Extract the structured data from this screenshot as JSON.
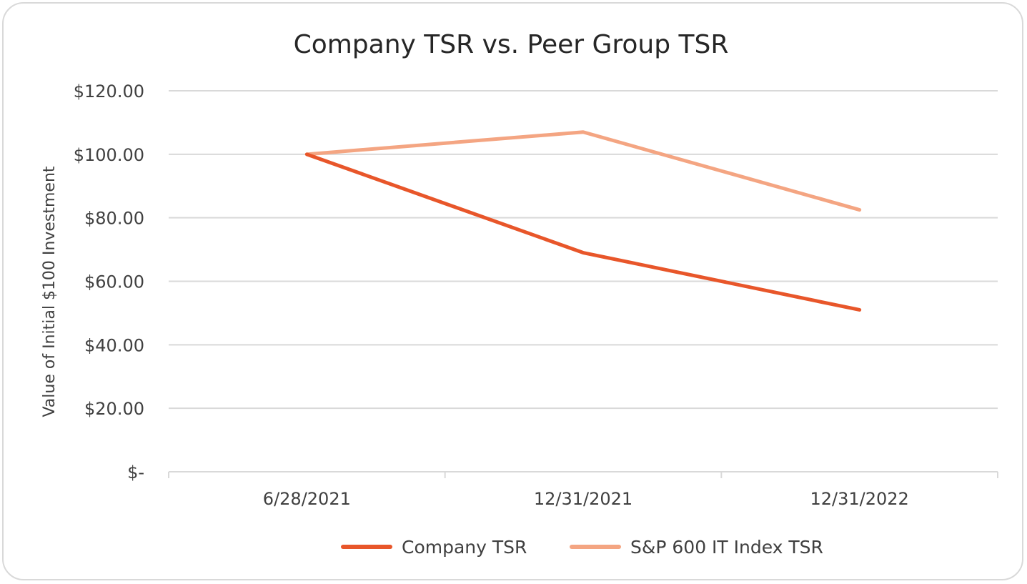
{
  "chart_data": {
    "type": "line",
    "title": "Company TSR vs. Peer Group TSR",
    "xlabel": "",
    "ylabel": "Value of Initial $100 Investment",
    "categories": [
      "6/28/2021",
      "12/31/2021",
      "12/31/2022"
    ],
    "ylim": [
      0,
      120
    ],
    "y_ticks": [
      0,
      20,
      40,
      60,
      80,
      100,
      120
    ],
    "y_tick_labels": [
      "$-",
      "$20.00",
      "$40.00",
      "$60.00",
      "$80.00",
      "$100.00",
      "$120.00"
    ],
    "grid": true,
    "legend_position": "bottom",
    "series": [
      {
        "name": "Company TSR",
        "values": [
          100,
          69,
          51
        ],
        "color": "#e8562a"
      },
      {
        "name": "S&P 600 IT Index TSR",
        "values": [
          100,
          107,
          82.5
        ],
        "color": "#f4a582"
      }
    ]
  }
}
